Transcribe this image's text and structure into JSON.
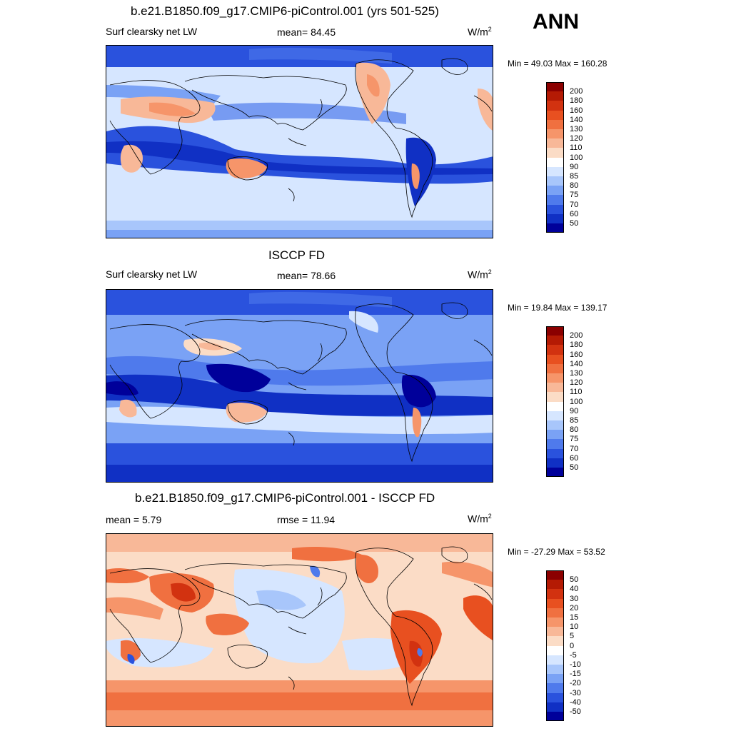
{
  "header": {
    "title": "b.e21.B1850.f09_g17.CMIP6-piControl.001 (yrs 501-525)",
    "season": "ANN"
  },
  "panels": [
    {
      "title": "",
      "left_label": "Surf clearsky net LW",
      "center_label": "mean=  84.45",
      "units_base": "W/m",
      "units_exp": "2",
      "minmax": "Min =  49.03 Max = 160.28",
      "colorbar": {
        "labels": [
          "200",
          "180",
          "160",
          "140",
          "130",
          "120",
          "110",
          "100",
          "90",
          "85",
          "80",
          "75",
          "70",
          "60",
          "50"
        ],
        "colors": [
          "#8b0000",
          "#b41a04",
          "#d23210",
          "#e85020",
          "#f07040",
          "#f6956a",
          "#f8b898",
          "#fbdcc6",
          "#ffffff",
          "#d6e6ff",
          "#a8c6fb",
          "#7aa2f5",
          "#4f7aec",
          "#2a52dd",
          "#1030c4",
          "#00009a"
        ]
      }
    },
    {
      "title": "ISCCP FD",
      "left_label": "Surf clearsky net LW",
      "center_label": "mean=  78.66",
      "units_base": "W/m",
      "units_exp": "2",
      "minmax": "Min =  19.84 Max = 139.17",
      "colorbar": {
        "labels": [
          "200",
          "180",
          "160",
          "140",
          "130",
          "120",
          "110",
          "100",
          "90",
          "85",
          "80",
          "75",
          "70",
          "60",
          "50"
        ],
        "colors": [
          "#8b0000",
          "#b41a04",
          "#d23210",
          "#e85020",
          "#f07040",
          "#f6956a",
          "#f8b898",
          "#fbdcc6",
          "#ffffff",
          "#d6e6ff",
          "#a8c6fb",
          "#7aa2f5",
          "#4f7aec",
          "#2a52dd",
          "#1030c4",
          "#00009a"
        ]
      }
    },
    {
      "title": "b.e21.B1850.f09_g17.CMIP6-piControl.001 - ISCCP FD",
      "left_label": "mean =   5.79",
      "center_label": "rmse =  11.94",
      "units_base": "W/m",
      "units_exp": "2",
      "minmax": "Min = -27.29 Max =  53.52",
      "colorbar": {
        "labels": [
          "50",
          "40",
          "30",
          "20",
          "15",
          "10",
          "5",
          "0",
          "-5",
          "-10",
          "-15",
          "-20",
          "-30",
          "-40",
          "-50"
        ],
        "colors": [
          "#8b0000",
          "#b41a04",
          "#d23210",
          "#e85020",
          "#f07040",
          "#f6956a",
          "#f8b898",
          "#fbdcc6",
          "#ffffff",
          "#d6e6ff",
          "#a8c6fb",
          "#7aa2f5",
          "#4f7aec",
          "#2a52dd",
          "#1030c4",
          "#00009a"
        ]
      }
    }
  ]
}
